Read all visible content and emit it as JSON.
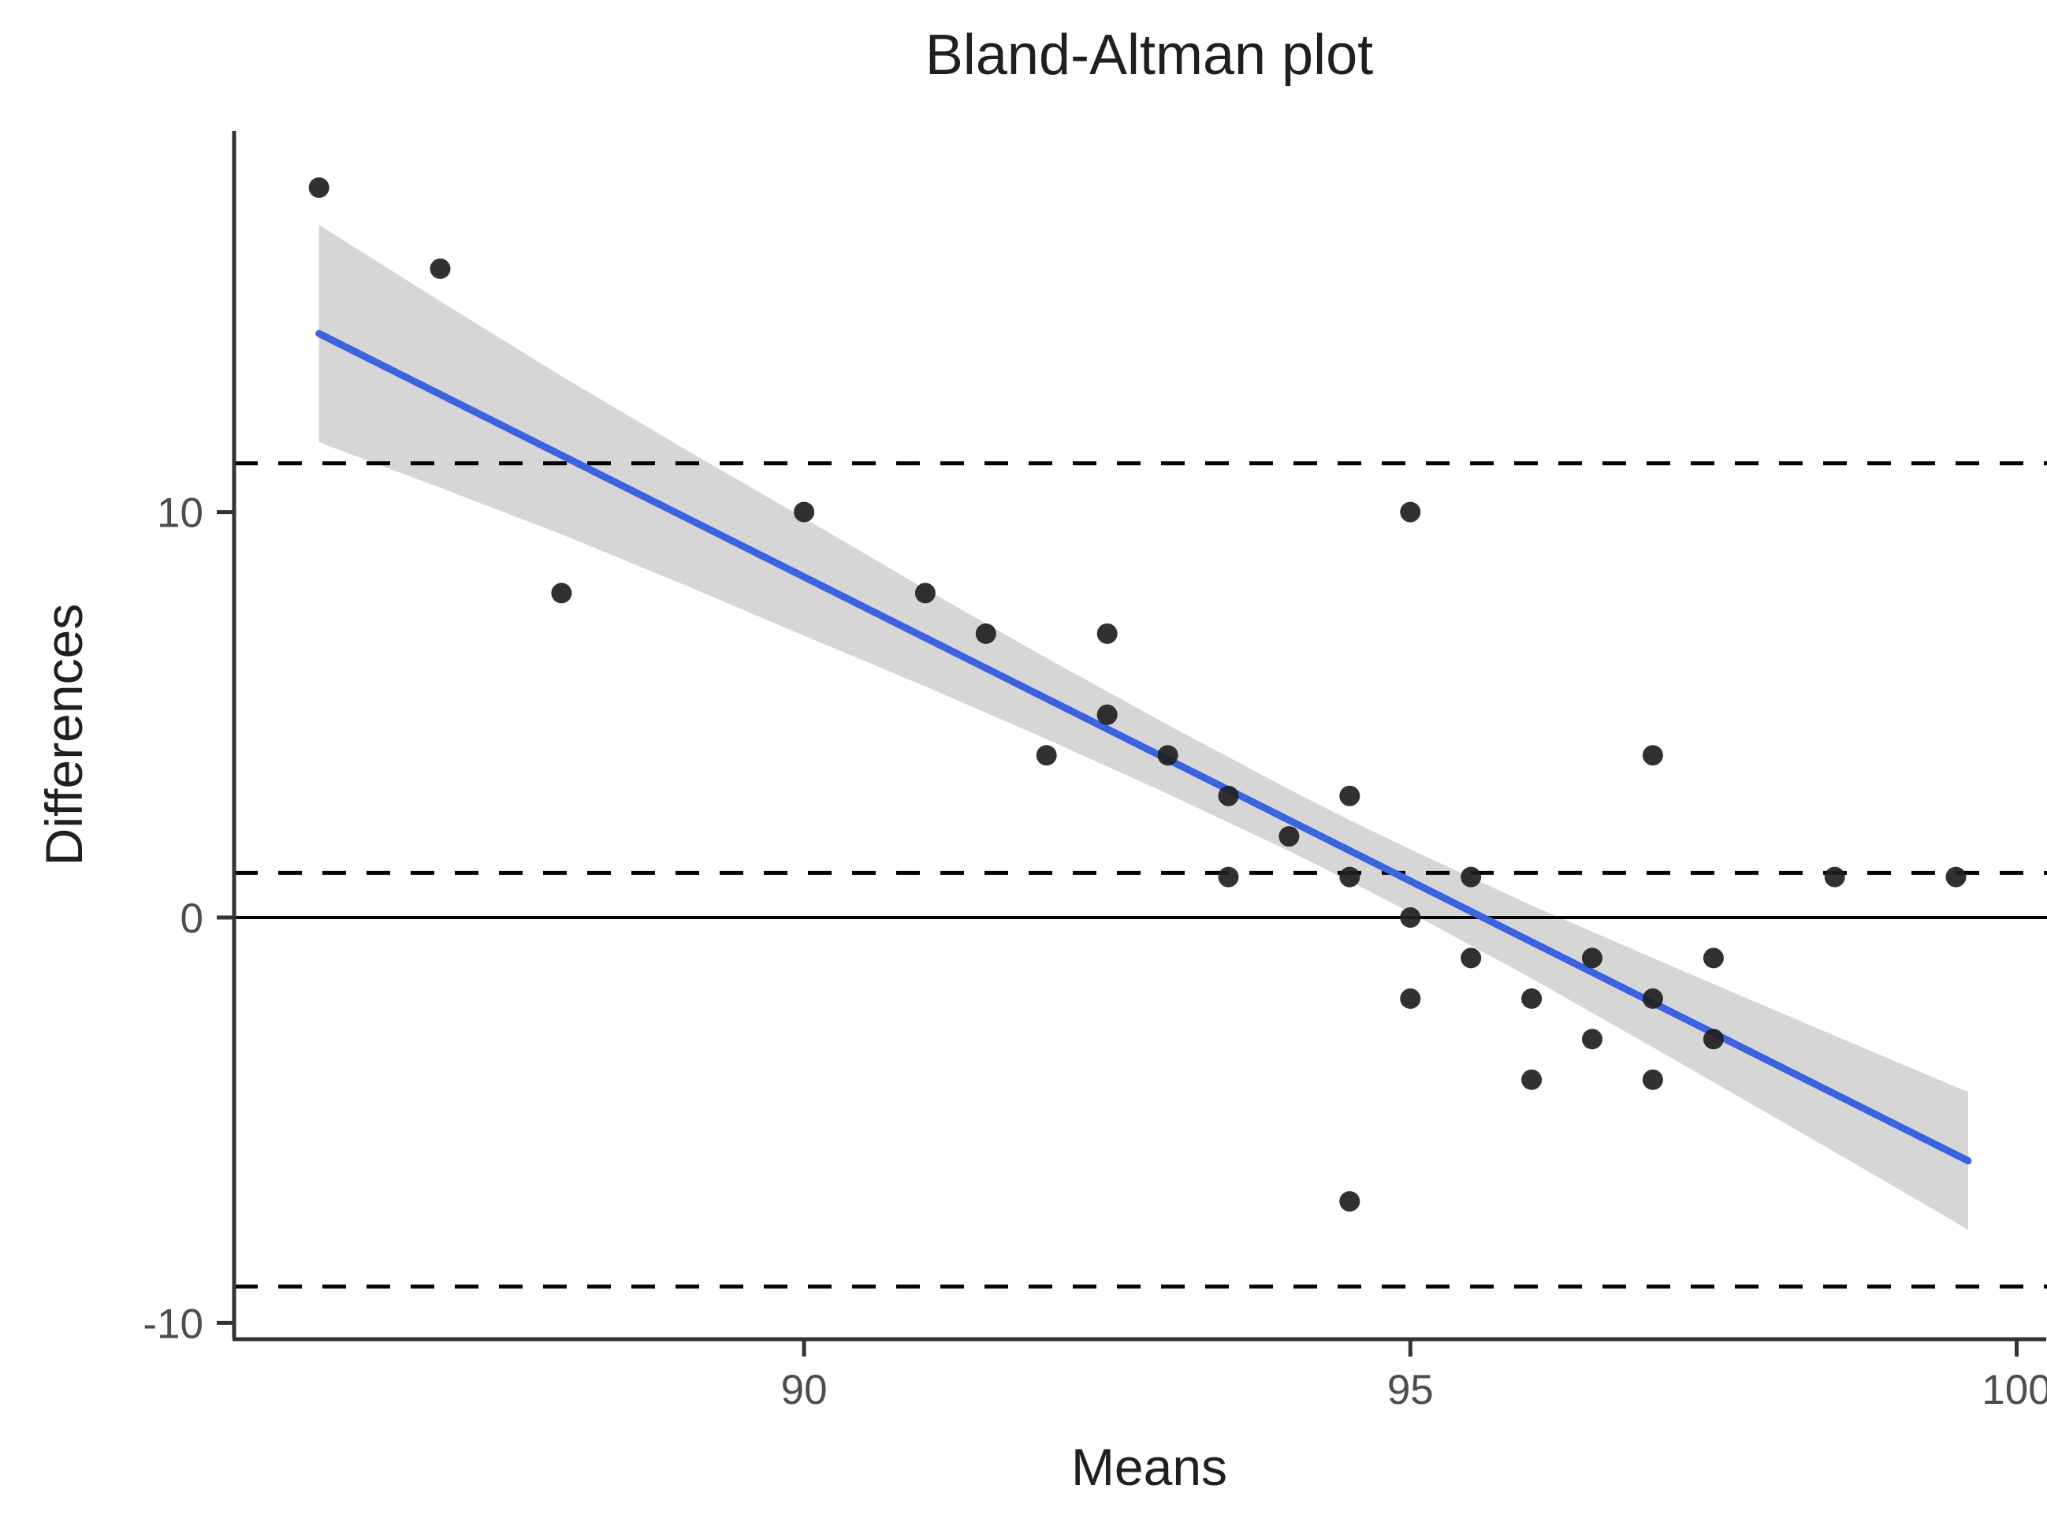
{
  "chart_data": {
    "type": "scatter",
    "title": "Bland-Altman plot",
    "xlabel": "Means",
    "ylabel": "Differences",
    "x_ticks": [
      90,
      95,
      100
    ],
    "y_ticks": [
      10,
      0,
      -10
    ],
    "xlim": [
      85.3,
      100.4
    ],
    "ylim": [
      -10.4,
      19.4
    ],
    "grid": false,
    "legend": false,
    "points": [
      [
        86,
        18
      ],
      [
        87,
        16
      ],
      [
        88,
        8
      ],
      [
        90,
        10
      ],
      [
        91,
        8
      ],
      [
        91.5,
        7
      ],
      [
        92,
        4
      ],
      [
        92.5,
        7
      ],
      [
        92.5,
        5
      ],
      [
        93,
        4
      ],
      [
        93.5,
        3
      ],
      [
        93.5,
        1
      ],
      [
        94,
        2
      ],
      [
        94.5,
        3
      ],
      [
        94.5,
        1
      ],
      [
        94.5,
        -7
      ],
      [
        95,
        10
      ],
      [
        95,
        0
      ],
      [
        95,
        -2
      ],
      [
        95.5,
        1
      ],
      [
        95.5,
        -1
      ],
      [
        96,
        -2
      ],
      [
        96,
        -4
      ],
      [
        96.5,
        -1
      ],
      [
        96.5,
        -3
      ],
      [
        97,
        4
      ],
      [
        97,
        -2
      ],
      [
        97,
        -4
      ],
      [
        97.5,
        -1
      ],
      [
        97.5,
        -3
      ],
      [
        98.5,
        1
      ],
      [
        99.5,
        1
      ]
    ],
    "reference_lines": {
      "zero_line": 0,
      "mean_difference": 1.1,
      "upper_limit_of_agreement": 11.2,
      "lower_limit_of_agreement": -9.1
    },
    "regression": {
      "x_start": 86.0,
      "y_start": 14.4,
      "x_end": 99.6,
      "y_end": -6.0
    },
    "confidence_band": [
      {
        "x": 86.0,
        "half_width": 2.68
      },
      {
        "x": 87.0,
        "half_width": 2.3
      },
      {
        "x": 88.0,
        "half_width": 1.95
      },
      {
        "x": 89.0,
        "half_width": 1.68
      },
      {
        "x": 90.0,
        "half_width": 1.45
      },
      {
        "x": 91.0,
        "half_width": 1.2
      },
      {
        "x": 92.0,
        "half_width": 1.0
      },
      {
        "x": 93.0,
        "half_width": 0.85
      },
      {
        "x": 94.0,
        "half_width": 0.76
      },
      {
        "x": 94.5,
        "half_width": 0.75
      },
      {
        "x": 95.0,
        "half_width": 0.78
      },
      {
        "x": 96.0,
        "half_width": 0.9
      },
      {
        "x": 97.0,
        "half_width": 1.1
      },
      {
        "x": 98.0,
        "half_width": 1.32
      },
      {
        "x": 99.0,
        "half_width": 1.55
      },
      {
        "x": 99.6,
        "half_width": 1.7
      }
    ],
    "colors": {
      "regression_line": "#3B63E0",
      "confidence_band": "#D6D6D6",
      "points": "#1F1F1F",
      "axis": "#333333",
      "tick_labels": "#4D4D4D",
      "reference_lines": "#000000",
      "background": "#FFFFFF"
    }
  }
}
